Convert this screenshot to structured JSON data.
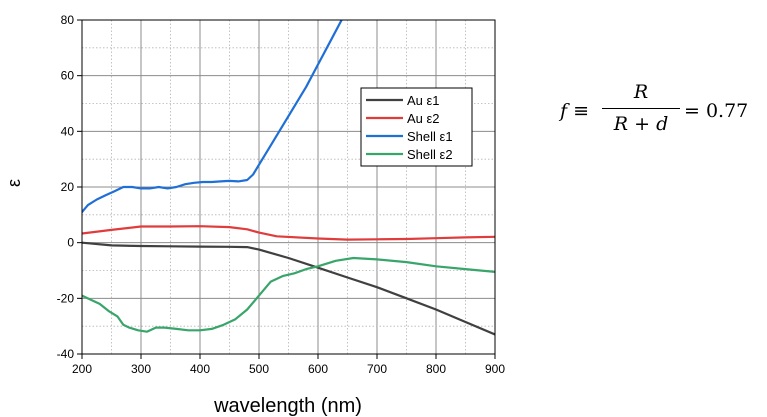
{
  "chart_data": {
    "type": "line",
    "xlabel": "wavelength (nm)",
    "ylabel": "ε",
    "xlim": [
      200,
      900
    ],
    "ylim": [
      -40,
      80
    ],
    "xticks": [
      200,
      300,
      400,
      500,
      600,
      700,
      800,
      900
    ],
    "yticks": [
      -40,
      -20,
      0,
      20,
      40,
      60,
      80
    ],
    "grid": true,
    "legend_position": "upper-right-center",
    "series": [
      {
        "name": "Au ε1",
        "color": "#404040",
        "x": [
          200,
          250,
          300,
          350,
          400,
          450,
          480,
          500,
          550,
          600,
          650,
          700,
          750,
          800,
          850,
          900
        ],
        "y": [
          0,
          -1,
          -1.2,
          -1.3,
          -1.4,
          -1.5,
          -1.6,
          -2.5,
          -5.5,
          -9,
          -12.5,
          -16,
          -20,
          -24,
          -28.5,
          -33
        ]
      },
      {
        "name": "Au ε2",
        "color": "#e03c3c",
        "x": [
          200,
          250,
          300,
          350,
          400,
          450,
          480,
          500,
          530,
          600,
          650,
          700,
          750,
          800,
          850,
          900
        ],
        "y": [
          3.3,
          4.6,
          5.8,
          5.8,
          5.9,
          5.6,
          4.8,
          3.6,
          2.3,
          1.5,
          1.1,
          1.2,
          1.3,
          1.6,
          1.9,
          2.1
        ]
      },
      {
        "name": "Shell ε1",
        "color": "#1f6fd6",
        "x": [
          200,
          210,
          225,
          240,
          255,
          270,
          285,
          300,
          315,
          330,
          345,
          360,
          375,
          390,
          405,
          420,
          435,
          450,
          465,
          480,
          490,
          500,
          520,
          540,
          560,
          580,
          600,
          620,
          640
        ],
        "y": [
          11,
          13.5,
          15.5,
          17,
          18.5,
          20,
          20,
          19.5,
          19.5,
          20,
          19.5,
          20,
          21,
          21.5,
          21.8,
          21.8,
          22,
          22.2,
          22,
          22.5,
          24.5,
          28,
          35,
          42,
          49,
          56,
          64,
          72,
          80
        ]
      },
      {
        "name": "Shell ε2",
        "color": "#3aa56b",
        "x": [
          200,
          215,
          230,
          245,
          260,
          270,
          280,
          295,
          310,
          325,
          340,
          360,
          380,
          400,
          420,
          440,
          460,
          480,
          500,
          520,
          540,
          560,
          580,
          600,
          630,
          660,
          700,
          750,
          800,
          850,
          900
        ],
        "y": [
          -19,
          -20.5,
          -22,
          -24.5,
          -26.5,
          -29.5,
          -30.5,
          -31.5,
          -32,
          -30.5,
          -30.5,
          -31,
          -31.5,
          -31.5,
          -31,
          -29.5,
          -27.5,
          -24,
          -19,
          -14,
          -12,
          -11,
          -9.5,
          -8.5,
          -6.5,
          -5.5,
          -6,
          -7,
          -8.5,
          -9.5,
          -10.5
        ]
      }
    ]
  },
  "formula": {
    "lhs": "f ≡",
    "numerator": "R",
    "denominator": "R + d",
    "rhs": "= 0.77"
  }
}
